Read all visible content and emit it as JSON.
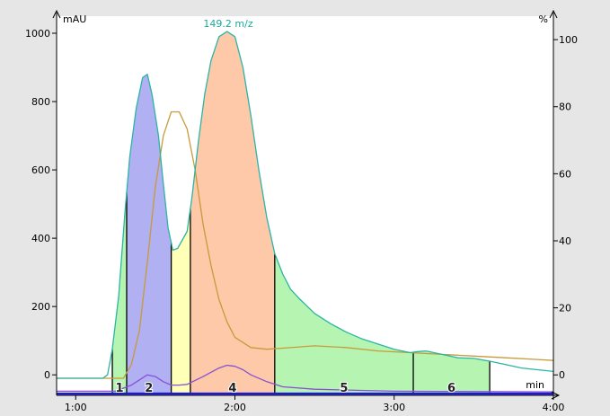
{
  "chart_data": {
    "type": "line",
    "x_unit": "min",
    "left_axis": {
      "unit": "mAU",
      "range": [
        -60,
        1050
      ],
      "ticks": [
        "0",
        "200",
        "400",
        "600",
        "800",
        "1000"
      ],
      "tick_values": [
        0,
        200,
        400,
        600,
        800,
        1000
      ]
    },
    "right_axis": {
      "unit": "%",
      "range": [
        -6.1,
        107
      ],
      "ticks": [
        "0",
        "20",
        "40",
        "60",
        "80",
        "100"
      ],
      "tick_values": [
        0,
        20,
        40,
        60,
        80,
        100
      ]
    },
    "x_axis": {
      "range": [
        0.88,
        4.0
      ],
      "ticks": [
        "1:00",
        "2:00",
        "3:00",
        "4:00"
      ],
      "tick_values": [
        1.0,
        2.0,
        3.0,
        4.0
      ]
    },
    "annotation": "149.2 m/z",
    "fractions": [
      {
        "label": "1",
        "start": 1.23,
        "end": 1.32,
        "color": "#b5f5b1"
      },
      {
        "label": "2",
        "start": 1.32,
        "end": 1.6,
        "color": "#b0b0f2"
      },
      {
        "label": "",
        "start": 1.6,
        "end": 1.72,
        "color": "#ffffb8"
      },
      {
        "label": "4",
        "start": 1.72,
        "end": 2.25,
        "color": "#fdc9a8"
      },
      {
        "label": "5",
        "start": 2.25,
        "end": 3.12,
        "color": "#b5f5b1"
      },
      {
        "label": "6",
        "start": 3.12,
        "end": 3.6,
        "color": "#b5f5b1"
      }
    ],
    "series": [
      {
        "name": "",
        "color": "#2ab5a5",
        "axis": "left",
        "x": [
          0.88,
          1.17,
          1.2,
          1.23,
          1.27,
          1.31,
          1.34,
          1.38,
          1.42,
          1.45,
          1.48,
          1.52,
          1.55,
          1.58,
          1.61,
          1.64,
          1.67,
          1.7,
          1.73,
          1.77,
          1.81,
          1.85,
          1.9,
          1.95,
          2.0,
          2.05,
          2.1,
          2.15,
          2.2,
          2.25,
          2.3,
          2.35,
          2.4,
          2.5,
          2.6,
          2.7,
          2.8,
          2.9,
          3.0,
          3.1,
          3.15,
          3.2,
          3.3,
          3.4,
          3.5,
          3.6,
          3.7,
          3.8,
          3.9,
          4.0
        ],
        "y": [
          -10,
          -10,
          0,
          75,
          230,
          480,
          640,
          780,
          870,
          880,
          820,
          700,
          560,
          430,
          365,
          370,
          395,
          420,
          520,
          680,
          820,
          920,
          990,
          1005,
          990,
          900,
          760,
          600,
          460,
          355,
          295,
          250,
          225,
          180,
          150,
          125,
          105,
          90,
          75,
          65,
          68,
          70,
          60,
          50,
          48,
          40,
          30,
          20,
          15,
          10
        ]
      },
      {
        "name": "",
        "color": "#c89a3a",
        "axis": "left",
        "x": [
          0.88,
          1.3,
          1.35,
          1.4,
          1.45,
          1.5,
          1.55,
          1.6,
          1.65,
          1.7,
          1.75,
          1.8,
          1.85,
          1.9,
          1.95,
          2.0,
          2.1,
          2.2,
          2.3,
          2.5,
          2.7,
          2.9,
          3.1,
          3.3,
          3.5,
          3.7,
          3.9,
          4.0
        ],
        "y": [
          -10,
          -10,
          30,
          130,
          330,
          550,
          700,
          770,
          770,
          720,
          600,
          440,
          320,
          220,
          155,
          110,
          80,
          75,
          78,
          85,
          80,
          70,
          65,
          60,
          55,
          50,
          45,
          42
        ]
      },
      {
        "name": "",
        "color": "#8a4fd6",
        "axis": "left",
        "x": [
          0.88,
          1.25,
          1.35,
          1.45,
          1.5,
          1.55,
          1.6,
          1.65,
          1.7,
          1.8,
          1.9,
          1.95,
          2.0,
          2.05,
          2.1,
          2.2,
          2.3,
          2.5,
          3.0,
          4.0
        ],
        "y": [
          -48,
          -48,
          -30,
          0,
          -5,
          -20,
          -30,
          -30,
          -28,
          -5,
          20,
          28,
          25,
          15,
          0,
          -20,
          -35,
          -42,
          -48,
          -50
        ]
      },
      {
        "name": "",
        "color": "#1a1ad8",
        "axis": "left",
        "x": [
          0.88,
          4.0
        ],
        "y": [
          -55,
          -55
        ]
      }
    ]
  }
}
